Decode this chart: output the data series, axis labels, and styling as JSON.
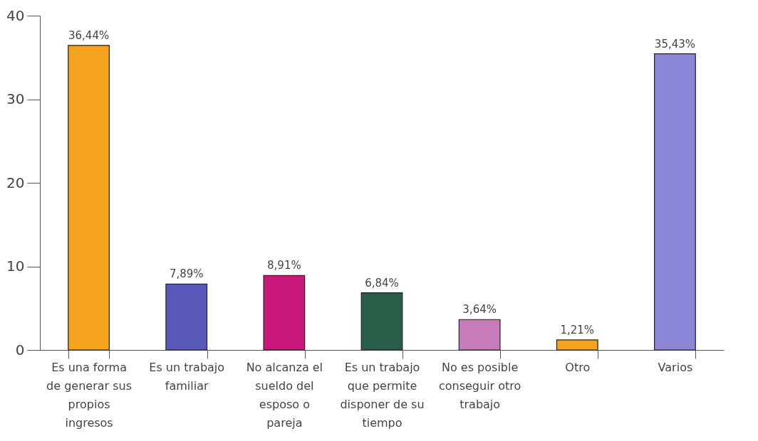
{
  "chart_data": {
    "type": "bar",
    "categories": [
      "Es una forma de generar sus propios ingresos",
      "Es un trabajo familiar",
      "No alcanza el sueldo del esposo o pareja",
      "Es un trabajo que permite disponer de su tiempo",
      "No es posible conseguir otro trabajo",
      "Otro",
      "Varios"
    ],
    "values": [
      36.44,
      7.89,
      8.91,
      6.84,
      3.64,
      1.21,
      35.43
    ],
    "value_labels": [
      "36,44%",
      "7,89%",
      "8,91%",
      "6,84%",
      "3,64%",
      "1,21%",
      "35,43%"
    ],
    "colors": [
      "#f5a31e",
      "#5858b8",
      "#c8187c",
      "#2b5e48",
      "#c77bb8",
      "#f5a31e",
      "#8c86d6"
    ],
    "ylim": [
      0,
      40
    ],
    "yticks": [
      0,
      10,
      20,
      30,
      40
    ],
    "grid": false
  }
}
